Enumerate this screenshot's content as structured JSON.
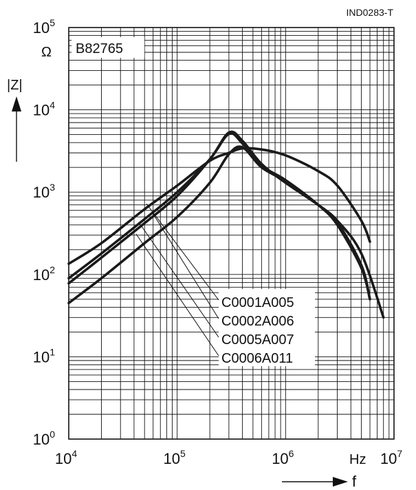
{
  "doc_id": "IND0283-T",
  "part_label": "B82765",
  "chart_data": {
    "type": "line",
    "title": "",
    "xlabel": "f",
    "xunit": "Hz",
    "ylabel": "|Z|",
    "yunit": "Ω",
    "xscale": "log",
    "yscale": "log",
    "xlim": [
      10000,
      10000000
    ],
    "ylim": [
      1,
      100000
    ],
    "grid": true,
    "x_ticks": [
      {
        "base": "10",
        "exp": "4"
      },
      {
        "base": "10",
        "exp": "5"
      },
      {
        "base": "10",
        "exp": "6"
      },
      {
        "base": "10",
        "exp": "7"
      }
    ],
    "y_ticks": [
      {
        "base": "10",
        "exp": "0"
      },
      {
        "base": "10",
        "exp": "1"
      },
      {
        "base": "10",
        "exp": "2"
      },
      {
        "base": "10",
        "exp": "3"
      },
      {
        "base": "10",
        "exp": "4"
      },
      {
        "base": "10",
        "exp": "5"
      }
    ],
    "series": [
      {
        "name": "C0001A005",
        "x": [
          10000,
          20000,
          50000,
          100000,
          200000,
          300000,
          400000,
          600000,
          1000000,
          2000000,
          3000000,
          5000000,
          6000000
        ],
        "y": [
          135,
          240,
          620,
          1200,
          2400,
          3000,
          3400,
          3300,
          2800,
          1800,
          1200,
          450,
          250
        ]
      },
      {
        "name": "C0002A006",
        "x": [
          10000,
          20000,
          50000,
          100000,
          200000,
          300000,
          400000,
          600000,
          1000000,
          2000000,
          3000000,
          5000000,
          6000000
        ],
        "y": [
          90,
          180,
          470,
          1000,
          2500,
          5100,
          3900,
          2100,
          1400,
          700,
          400,
          120,
          50
        ]
      },
      {
        "name": "C0005A007",
        "x": [
          10000,
          20000,
          50000,
          100000,
          200000,
          300000,
          400000,
          600000,
          1000000,
          2000000,
          3000000,
          5000000,
          8000000
        ],
        "y": [
          78,
          160,
          420,
          900,
          2500,
          5300,
          4200,
          2200,
          1300,
          700,
          450,
          180,
          30
        ]
      },
      {
        "name": "C0006A011",
        "x": [
          10000,
          20000,
          50000,
          100000,
          200000,
          300000,
          400000,
          600000,
          1000000,
          2000000,
          3000000,
          5000000,
          6000000
        ],
        "y": [
          45,
          90,
          240,
          500,
          1300,
          2900,
          3500,
          2000,
          1350,
          700,
          430,
          130,
          50
        ]
      }
    ]
  }
}
